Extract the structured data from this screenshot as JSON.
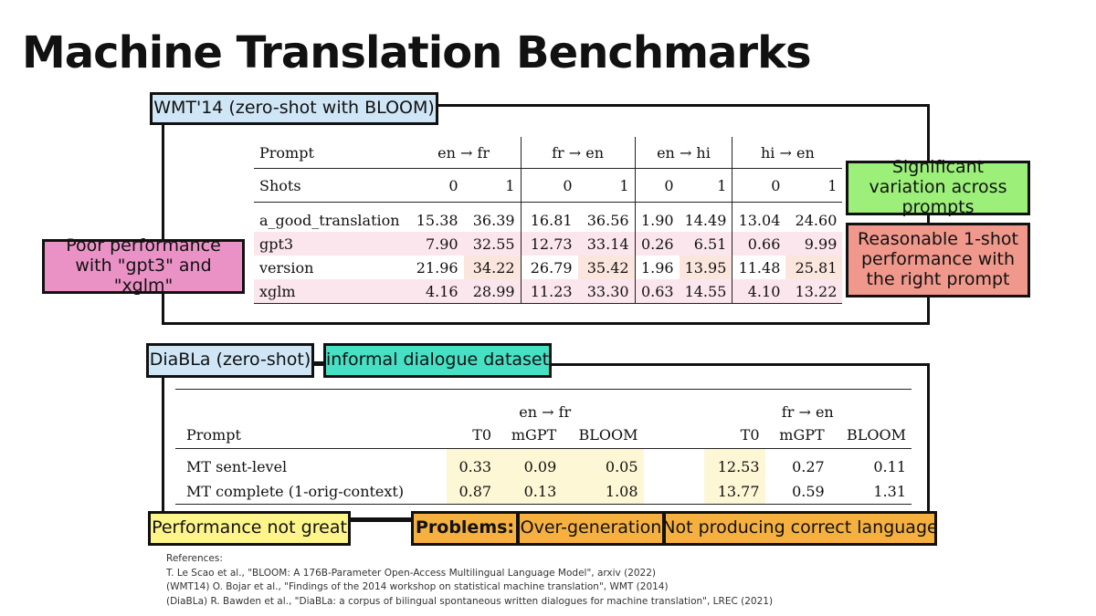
{
  "title": "Machine Translation Benchmarks",
  "wmt": {
    "tag": "WMT'14 (zero-shot with BLOOM)",
    "header_prompt": "Prompt",
    "pairs": [
      "en → fr",
      "fr → en",
      "en → hi",
      "hi → en"
    ],
    "shots_label": "Shots",
    "shots": [
      "0",
      "1",
      "0",
      "1",
      "0",
      "1",
      "0",
      "1"
    ],
    "rows": [
      {
        "prompt": "a_good_translation",
        "values": [
          "15.38",
          "36.39",
          "16.81",
          "36.56",
          "1.90",
          "14.49",
          "13.04",
          "24.60"
        ]
      },
      {
        "prompt": "gpt3",
        "values": [
          "7.90",
          "32.55",
          "12.73",
          "33.14",
          "0.26",
          "6.51",
          "0.66",
          "9.99"
        ]
      },
      {
        "prompt": "version",
        "values": [
          "21.96",
          "34.22",
          "26.79",
          "35.42",
          "1.96",
          "13.95",
          "11.48",
          "25.81"
        ]
      },
      {
        "prompt": "xglm",
        "values": [
          "4.16",
          "28.99",
          "11.23",
          "33.30",
          "0.63",
          "14.55",
          "4.10",
          "13.22"
        ]
      }
    ],
    "notes": {
      "variation": "Significant variation across prompts",
      "reasonable": "Reasonable 1-shot performance with the right prompt",
      "poor": "Poor performance with \"gpt3\" and \"xglm\""
    }
  },
  "diabla": {
    "tag": "DiaBLa (zero-shot)",
    "dataset_tag": "informal dialogue dataset",
    "header_prompt": "Prompt",
    "groups": [
      "en → fr",
      "fr → en"
    ],
    "models": [
      "T0",
      "mGPT",
      "BLOOM",
      "T0",
      "mGPT",
      "BLOOM"
    ],
    "rows": [
      {
        "prompt": "MT sent-level",
        "values": [
          "0.33",
          "0.09",
          "0.05",
          "12.53",
          "0.27",
          "0.11"
        ]
      },
      {
        "prompt": "MT complete (1-orig-context)",
        "values": [
          "0.87",
          "0.13",
          "1.08",
          "13.77",
          "0.59",
          "1.31"
        ]
      }
    ],
    "notes": {
      "not_great": "Performance not great",
      "problems": "Problems:",
      "overgen": "Over-generation",
      "wrong_lang": "Not producing correct language"
    }
  },
  "references": [
    "References:",
    "T. Le Scao et al., \"BLOOM: A 176B-Parameter Open-Access Multilingual Language Model\", arxiv (2022)",
    "(WMT14) O. Bojar et al., \"Findings of the 2014 workshop on statistical machine translation\", WMT (2014)",
    "(DiaBLa) R. Bawden et al., \"DiaBLa: a corpus of bilingual spontaneous written dialogues for machine translation\", LREC (2021)"
  ],
  "colors": {
    "blue_tag": "#cfe6f6",
    "teal_tag": "#46e0c4",
    "green_tag": "#9cf07a",
    "red_tag": "#f0988c",
    "pink_tag": "#ea92c6",
    "yellow_tag": "#fdf58a",
    "orange_tag": "#f5b040"
  }
}
